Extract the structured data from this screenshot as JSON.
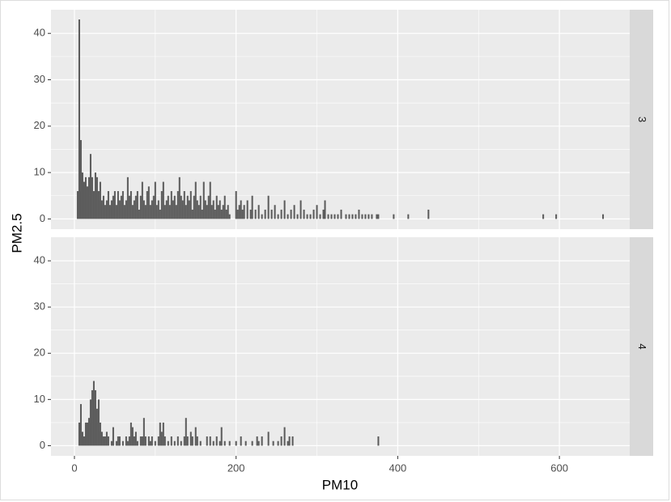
{
  "chart_data": {
    "type": "bar",
    "x_label": "PM10",
    "y_label": "PM2.5",
    "color": "#595959",
    "xlim": [
      -29,
      687
    ],
    "xticks": [
      0,
      200,
      400,
      600
    ],
    "ylim": [
      -2.2,
      45.1
    ],
    "yticks": [
      0,
      10,
      20,
      30,
      40
    ],
    "grid": true,
    "facets": [
      {
        "label": "3",
        "x": [
          4,
          6,
          8,
          10,
          12,
          14,
          16,
          18,
          20,
          22,
          24,
          26,
          28,
          30,
          32,
          34,
          36,
          38,
          40,
          42,
          44,
          46,
          48,
          50,
          52,
          54,
          56,
          58,
          60,
          62,
          64,
          66,
          68,
          70,
          72,
          74,
          76,
          78,
          80,
          82,
          84,
          86,
          88,
          90,
          92,
          94,
          96,
          98,
          100,
          102,
          104,
          106,
          108,
          110,
          112,
          114,
          116,
          118,
          120,
          122,
          124,
          126,
          128,
          130,
          132,
          134,
          136,
          138,
          140,
          142,
          144,
          146,
          148,
          150,
          152,
          154,
          156,
          158,
          160,
          162,
          164,
          166,
          168,
          170,
          172,
          174,
          176,
          178,
          180,
          182,
          184,
          186,
          188,
          190,
          192,
          200,
          202,
          204,
          206,
          208,
          210,
          214,
          218,
          220,
          224,
          228,
          232,
          236,
          240,
          244,
          248,
          252,
          256,
          260,
          264,
          268,
          272,
          276,
          280,
          284,
          288,
          292,
          296,
          300,
          304,
          308,
          310,
          314,
          318,
          322,
          326,
          330,
          336,
          340,
          344,
          348,
          352,
          356,
          360,
          364,
          368,
          374,
          376,
          395,
          413,
          438,
          580,
          596,
          654
        ],
        "values": [
          6,
          43,
          17,
          10,
          8,
          9,
          7,
          9,
          14,
          9,
          6,
          10,
          9,
          6,
          8,
          4,
          5,
          3,
          4,
          6,
          3,
          4,
          5,
          6,
          3,
          6,
          4,
          5,
          6,
          3,
          4,
          9,
          5,
          6,
          3,
          4,
          5,
          6,
          2,
          5,
          8,
          4,
          3,
          6,
          7,
          3,
          4,
          5,
          8,
          3,
          4,
          2,
          6,
          8,
          3,
          4,
          5,
          3,
          6,
          4,
          5,
          3,
          6,
          9,
          5,
          4,
          6,
          3,
          5,
          4,
          6,
          2,
          5,
          8,
          4,
          3,
          5,
          2,
          8,
          4,
          3,
          5,
          8,
          3,
          4,
          2,
          5,
          3,
          4,
          2,
          3,
          5,
          2,
          3,
          1,
          6,
          2,
          3,
          4,
          2,
          3,
          4,
          2,
          5,
          2,
          3,
          1,
          2,
          5,
          2,
          3,
          1,
          2,
          4,
          1,
          2,
          3,
          1,
          4,
          2,
          1,
          1,
          2,
          3,
          1,
          2,
          4,
          1,
          1,
          1,
          1,
          2,
          1,
          1,
          1,
          1,
          2,
          1,
          1,
          1,
          1,
          1,
          1,
          1,
          1,
          2,
          1,
          1,
          1
        ]
      },
      {
        "label": "4",
        "x": [
          6,
          8,
          10,
          12,
          14,
          16,
          18,
          20,
          22,
          24,
          26,
          28,
          30,
          32,
          34,
          36,
          38,
          40,
          42,
          46,
          48,
          52,
          54,
          56,
          60,
          64,
          66,
          68,
          70,
          72,
          74,
          76,
          78,
          82,
          84,
          86,
          88,
          92,
          94,
          96,
          100,
          104,
          106,
          108,
          110,
          112,
          116,
          120,
          124,
          128,
          132,
          136,
          138,
          140,
          144,
          146,
          150,
          152,
          156,
          164,
          168,
          172,
          176,
          180,
          182,
          186,
          192,
          200,
          206,
          212,
          220,
          226,
          228,
          232,
          240,
          246,
          252,
          256,
          260,
          264,
          266,
          270,
          376
        ],
        "values": [
          5,
          9,
          3,
          2,
          5,
          5,
          6,
          10,
          12,
          14,
          12,
          8,
          10,
          5,
          3,
          2,
          2,
          3,
          2,
          1,
          4,
          1,
          2,
          2,
          1,
          2,
          1,
          2,
          5,
          4,
          2,
          3,
          1,
          2,
          2,
          6,
          2,
          2,
          1,
          2,
          1,
          2,
          5,
          3,
          5,
          2,
          1,
          2,
          1,
          2,
          1,
          2,
          6,
          2,
          3,
          2,
          4,
          2,
          1,
          2,
          2,
          1,
          2,
          1,
          4,
          1,
          1,
          1,
          2,
          1,
          1,
          2,
          1,
          2,
          3,
          1,
          1,
          2,
          4,
          1,
          2,
          2,
          2
        ]
      }
    ]
  }
}
